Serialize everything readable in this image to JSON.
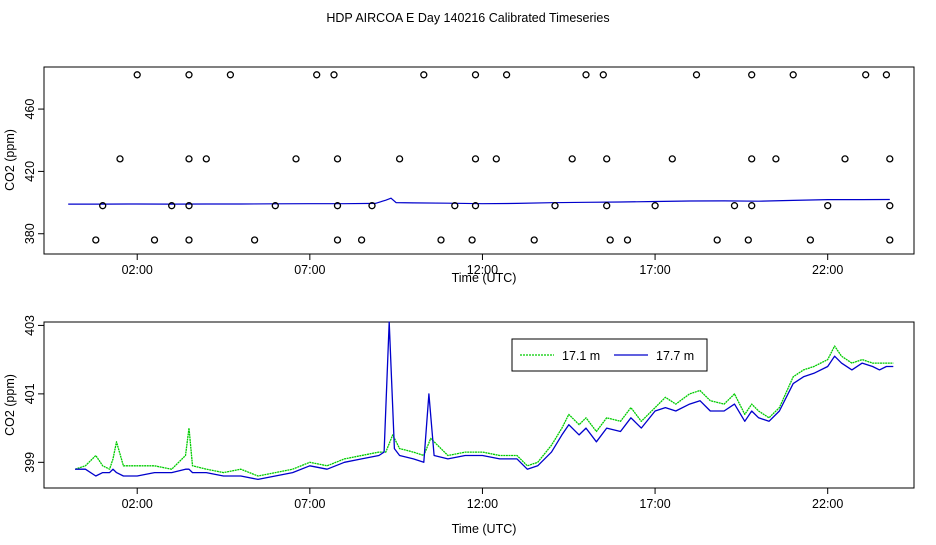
{
  "title": "HDP AIRCOA E  Day 140216  Calibrated Timeseries",
  "chart_data": [
    {
      "type": "scatter",
      "xlabel": "Time (UTC)",
      "ylabel": "CO2 (ppm)",
      "xlim": [
        -0.7,
        24.5
      ],
      "ylim": [
        367,
        487
      ],
      "x_ticks": [
        {
          "value": 2,
          "label": "02:00"
        },
        {
          "value": 7,
          "label": "07:00"
        },
        {
          "value": 12,
          "label": "12:00"
        },
        {
          "value": 17,
          "label": "17:00"
        },
        {
          "value": 22,
          "label": "22:00"
        }
      ],
      "y_ticks": [
        {
          "value": 380,
          "label": "380"
        },
        {
          "value": 420,
          "label": "420"
        },
        {
          "value": 460,
          "label": "460"
        }
      ],
      "line": {
        "color": "#0000cc",
        "x": [
          0,
          1,
          2,
          3,
          4,
          5,
          6,
          7,
          8,
          8.9,
          9.2,
          9.35,
          9.5,
          10,
          11,
          12,
          13,
          14,
          15,
          16,
          17,
          18,
          19,
          20,
          21,
          22,
          23,
          23.8
        ],
        "y": [
          399,
          399,
          399.1,
          399,
          399.1,
          399.1,
          399.2,
          399.3,
          399.3,
          399.5,
          401.5,
          402.8,
          400,
          399.8,
          399.6,
          399.3,
          399.5,
          399.9,
          400.2,
          400.4,
          400.7,
          401,
          401.1,
          400.9,
          401.4,
          401.9,
          401.9,
          402
        ]
      },
      "points": {
        "x": [
          0.8,
          1.0,
          1.5,
          2.0,
          2.5,
          3.0,
          3.5,
          3.5,
          3.5,
          3.5,
          4.0,
          4.7,
          5.4,
          6.0,
          6.6,
          7.2,
          7.7,
          7.8,
          7.8,
          7.8,
          8.5,
          8.8,
          9.6,
          10.3,
          10.8,
          11.2,
          11.7,
          11.8,
          11.8,
          11.8,
          12.4,
          12.7,
          13.5,
          14.1,
          14.6,
          15.0,
          15.5,
          15.6,
          15.6,
          15.7,
          16.2,
          17.0,
          17.5,
          18.2,
          18.8,
          19.3,
          19.7,
          19.8,
          19.8,
          19.8,
          20.5,
          21.0,
          21.5,
          22.0,
          22.5,
          23.1,
          23.7,
          23.8,
          23.8,
          23.8
        ],
        "y": [
          376,
          398,
          428,
          482,
          376,
          398,
          376,
          398,
          428,
          482,
          428,
          482,
          376,
          398,
          428,
          482,
          482,
          428,
          398,
          376,
          376,
          398,
          428,
          482,
          376,
          398,
          376,
          398,
          428,
          482,
          428,
          482,
          376,
          398,
          428,
          482,
          482,
          428,
          398,
          376,
          376,
          398,
          428,
          482,
          376,
          398,
          376,
          398,
          428,
          482,
          428,
          482,
          376,
          398,
          428,
          482,
          482,
          428,
          398,
          376
        ]
      }
    },
    {
      "type": "line",
      "xlabel": "Time (UTC)",
      "ylabel": "CO2 (ppm)",
      "xlim": [
        -0.7,
        24.5
      ],
      "ylim": [
        398.25,
        403.1
      ],
      "x_ticks": [
        {
          "value": 2,
          "label": "02:00"
        },
        {
          "value": 7,
          "label": "07:00"
        },
        {
          "value": 12,
          "label": "12:00"
        },
        {
          "value": 17,
          "label": "17:00"
        },
        {
          "value": 22,
          "label": "22:00"
        }
      ],
      "y_ticks": [
        {
          "value": 399,
          "label": "399"
        },
        {
          "value": 401,
          "label": "401"
        },
        {
          "value": 403,
          "label": "403"
        }
      ],
      "legend": {
        "position": "top-right"
      },
      "series": [
        {
          "name": "17.1 m",
          "color": "#00cc00",
          "x": [
            0.2,
            0.5,
            0.8,
            1.0,
            1.2,
            1.3,
            1.4,
            1.6,
            2.0,
            2.5,
            3.0,
            3.4,
            3.5,
            3.6,
            4.0,
            4.5,
            5.0,
            5.5,
            6.0,
            6.5,
            7.0,
            7.5,
            8.0,
            8.5,
            9.0,
            9.2,
            9.4,
            9.6,
            10.0,
            10.3,
            10.5,
            11.0,
            11.5,
            12.0,
            12.5,
            13.0,
            13.3,
            13.6,
            14.0,
            14.3,
            14.5,
            14.8,
            15.0,
            15.3,
            15.6,
            16.0,
            16.3,
            16.6,
            17.0,
            17.3,
            17.6,
            18.0,
            18.3,
            18.6,
            19.0,
            19.3,
            19.6,
            19.8,
            20.0,
            20.3,
            20.6,
            21.0,
            21.3,
            21.6,
            22.0,
            22.2,
            22.4,
            22.7,
            23.0,
            23.3,
            23.5,
            23.7,
            23.9
          ],
          "y": [
            398.8,
            398.9,
            399.2,
            398.9,
            398.8,
            399.1,
            399.6,
            398.9,
            398.9,
            398.9,
            398.8,
            399.2,
            400.0,
            398.9,
            398.8,
            398.7,
            398.8,
            398.6,
            398.7,
            398.8,
            399.0,
            398.9,
            399.1,
            399.2,
            399.3,
            399.3,
            399.8,
            399.4,
            399.3,
            399.2,
            399.7,
            399.2,
            399.3,
            399.3,
            399.2,
            399.2,
            398.9,
            399.0,
            399.5,
            400.0,
            400.4,
            400.1,
            400.3,
            399.9,
            400.3,
            400.2,
            400.6,
            400.2,
            400.6,
            400.9,
            400.7,
            401.0,
            401.1,
            400.8,
            400.7,
            401.0,
            400.4,
            400.7,
            400.5,
            400.3,
            400.6,
            401.5,
            401.7,
            401.8,
            402.0,
            402.4,
            402.1,
            401.9,
            402.0,
            401.9,
            401.9,
            401.9,
            401.9
          ]
        },
        {
          "name": "17.7 m",
          "color": "#0000cc",
          "x": [
            0.2,
            0.5,
            0.8,
            1.0,
            1.2,
            1.3,
            1.4,
            1.6,
            2.0,
            2.5,
            3.0,
            3.4,
            3.5,
            3.6,
            4.0,
            4.5,
            5.0,
            5.5,
            6.0,
            6.5,
            7.0,
            7.5,
            8.0,
            8.5,
            9.0,
            9.15,
            9.3,
            9.45,
            9.6,
            10.0,
            10.3,
            10.45,
            10.6,
            11.0,
            11.5,
            12.0,
            12.5,
            13.0,
            13.3,
            13.6,
            14.0,
            14.3,
            14.5,
            14.8,
            15.0,
            15.3,
            15.6,
            16.0,
            16.3,
            16.6,
            17.0,
            17.3,
            17.6,
            18.0,
            18.3,
            18.6,
            19.0,
            19.3,
            19.6,
            19.8,
            20.0,
            20.3,
            20.6,
            21.0,
            21.3,
            21.6,
            22.0,
            22.2,
            22.4,
            22.7,
            23.0,
            23.3,
            23.5,
            23.7,
            23.9
          ],
          "y": [
            398.8,
            398.8,
            398.6,
            398.7,
            398.7,
            398.8,
            398.7,
            398.6,
            398.6,
            398.7,
            398.7,
            398.8,
            398.8,
            398.7,
            398.7,
            398.6,
            398.6,
            398.5,
            398.6,
            398.7,
            398.9,
            398.8,
            399.0,
            399.1,
            399.2,
            399.3,
            403.1,
            399.4,
            399.2,
            399.1,
            399.0,
            401.0,
            399.2,
            399.1,
            399.2,
            399.2,
            399.1,
            399.1,
            398.8,
            398.9,
            399.3,
            399.8,
            400.1,
            399.8,
            400.0,
            399.6,
            400.0,
            399.9,
            400.3,
            400.0,
            400.5,
            400.6,
            400.5,
            400.7,
            400.8,
            400.5,
            400.5,
            400.7,
            400.2,
            400.5,
            400.3,
            400.2,
            400.5,
            401.3,
            401.5,
            401.6,
            401.8,
            402.1,
            401.9,
            401.7,
            401.9,
            401.8,
            401.7,
            401.8,
            401.8
          ]
        }
      ]
    }
  ]
}
